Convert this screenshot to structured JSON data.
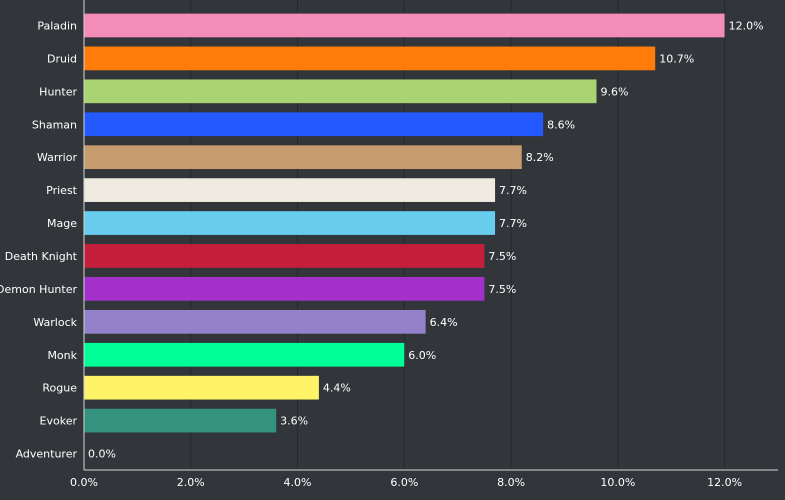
{
  "chart_data": {
    "type": "bar",
    "orientation": "horizontal",
    "title": "",
    "xlabel": "",
    "ylabel": "",
    "xlim": [
      0,
      13.0
    ],
    "x_ticks": [
      "0.0%",
      "2.0%",
      "4.0%",
      "6.0%",
      "8.0%",
      "10.0%",
      "12.0%"
    ],
    "x_tick_values": [
      0,
      2,
      4,
      6,
      8,
      10,
      12
    ],
    "grid": true,
    "legend": "none",
    "categories": [
      "Paladin",
      "Druid",
      "Hunter",
      "Shaman",
      "Warrior",
      "Priest",
      "Mage",
      "Death Knight",
      "Demon Hunter",
      "Warlock",
      "Monk",
      "Rogue",
      "Evoker",
      "Adventurer"
    ],
    "values": [
      12.0,
      10.7,
      9.6,
      8.6,
      8.2,
      7.7,
      7.7,
      7.5,
      7.5,
      6.4,
      6.0,
      4.4,
      3.6,
      0.0
    ],
    "value_labels": [
      "12.0%",
      "10.7%",
      "9.6%",
      "8.6%",
      "8.2%",
      "7.7%",
      "7.7%",
      "7.5%",
      "7.5%",
      "6.4%",
      "6.0%",
      "4.4%",
      "3.6%",
      "0.0%"
    ],
    "colors": [
      "#f48cba",
      "#ff7c0a",
      "#aad372",
      "#2459ff",
      "#c69b6d",
      "#f0ebe0",
      "#68ccef",
      "#c41e3b",
      "#a330c9",
      "#9382c9",
      "#00ff98",
      "#fff468",
      "#33937f",
      "#6b6b6b"
    ]
  }
}
